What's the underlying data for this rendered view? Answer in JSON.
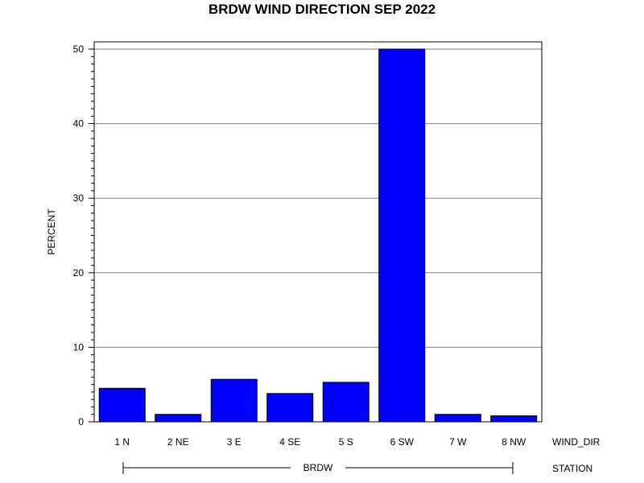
{
  "chart_data": {
    "type": "bar",
    "title": "BRDW WIND DIRECTION SEP 2022",
    "ylabel": "PERCENT",
    "xlabel": "WIND_DIR",
    "group_axis_label": "STATION",
    "group_label": "BRDW",
    "categories": [
      "1 N",
      "2 NE",
      "3 E",
      "4 SE",
      "5 S",
      "6 SW",
      "7 W",
      "8 NW"
    ],
    "values": [
      4.5,
      1.0,
      5.7,
      3.8,
      5.3,
      50.0,
      1.0,
      0.8
    ],
    "ylim": [
      0,
      50
    ],
    "yticks": [
      0,
      10,
      20,
      30,
      40,
      50
    ],
    "grid": true,
    "bar_color": "#0000ff",
    "grid_color": "#808080"
  }
}
